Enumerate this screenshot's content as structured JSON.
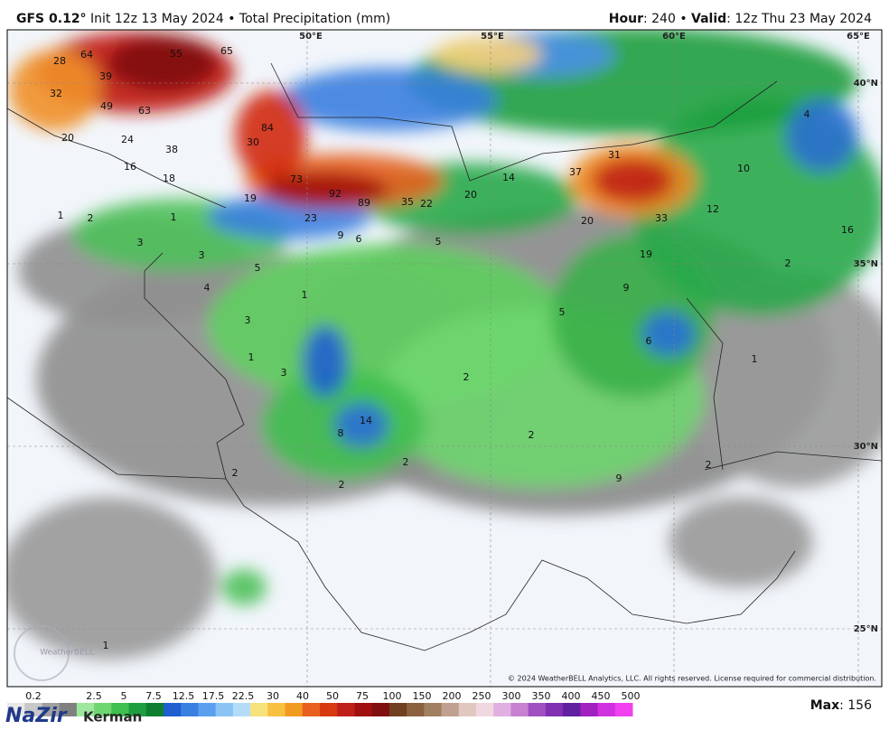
{
  "header": {
    "model": "GFS 0.12°",
    "run": "Init 12z 13 May 2024 • Total Precipitation (mm)",
    "hour_label": "Hour",
    "hour": ": 240 • ",
    "valid_label": "Valid",
    "valid": ": 12z Thu 23 May 2024"
  },
  "map": {
    "graticule": [
      "50°E",
      "55°E",
      "60°E",
      "65°E",
      "40°N",
      "35°N",
      "30°N",
      "25°N"
    ],
    "values": [
      28,
      64,
      55,
      65,
      39,
      32,
      49,
      63,
      20,
      24,
      38,
      30,
      84,
      16,
      18,
      73,
      92,
      89,
      35,
      22,
      20,
      14,
      37,
      31,
      10,
      4,
      19,
      23,
      9,
      6,
      5,
      20,
      33,
      12,
      16,
      2,
      19,
      1,
      2,
      3,
      3,
      5,
      1,
      4,
      1,
      3,
      9,
      5,
      6,
      1,
      1,
      3,
      2,
      14,
      8,
      2,
      2,
      9,
      2,
      2,
      2,
      1
    ]
  },
  "copyright": "© 2024 WeatherBELL Analytics, LLC. All rights reserved. License required for commercial distribution.",
  "watermark": "WeatherBELL",
  "legend": {
    "labels": [
      "0.2",
      "2.5",
      "5",
      "7.5",
      "12.5",
      "17.5",
      "22.5",
      "30",
      "40",
      "50",
      "75",
      "100",
      "150",
      "200",
      "250",
      "300",
      "350",
      "400",
      "450",
      "500"
    ]
  },
  "logo": {
    "name": "NaZir",
    "city": "Kerman"
  },
  "footer": {
    "max_label": "Max",
    "max": ": 156"
  }
}
